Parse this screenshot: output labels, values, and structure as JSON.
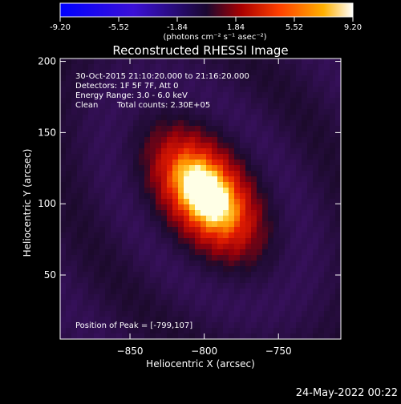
{
  "colorbar": {
    "ticks": [
      "-9.20",
      "-5.52",
      "-1.84",
      "1.84",
      "5.52",
      "9.20"
    ],
    "units": "(photons cm⁻² s⁻¹ asec⁻²)",
    "min": -9.2,
    "max": 9.2
  },
  "title": "Reconstructed RHESSI Image",
  "info": {
    "time_range": "30-Oct-2015 21:10:20.000 to 21:16:20.000",
    "detectors": "Detectors: 1F 5F 7F, Att 0",
    "energy": "Energy Range: 3.0 - 6.0 keV",
    "clean_label": "Clean",
    "counts": "Total counts: 2.30E+05",
    "peak": "Position of Peak = [-799,107]"
  },
  "footer_date": "24-May-2022 00:22",
  "colors": {
    "background": "#000000",
    "axes": "#ffffff",
    "cmap_low": "#0000ff",
    "cmap_mid": "#7a18a8",
    "cmap_high": "#ffffff",
    "cmap_warm": "#ff2000"
  },
  "chart_data": {
    "type": "heatmap",
    "title": "Reconstructed RHESSI Image",
    "xlabel": "Heliocentric X (arcsec)",
    "ylabel": "Heliocentric Y (arcsec)",
    "xlim": [
      -897,
      -708
    ],
    "ylim": [
      5,
      202
    ],
    "xticks": [
      -850,
      -800,
      -750
    ],
    "yticks": [
      50,
      100,
      150,
      200
    ],
    "colorbar_range": [
      -9.2,
      9.2
    ],
    "peak_position": [
      -799,
      107
    ],
    "peak_value": 9.2,
    "grid": false
  }
}
